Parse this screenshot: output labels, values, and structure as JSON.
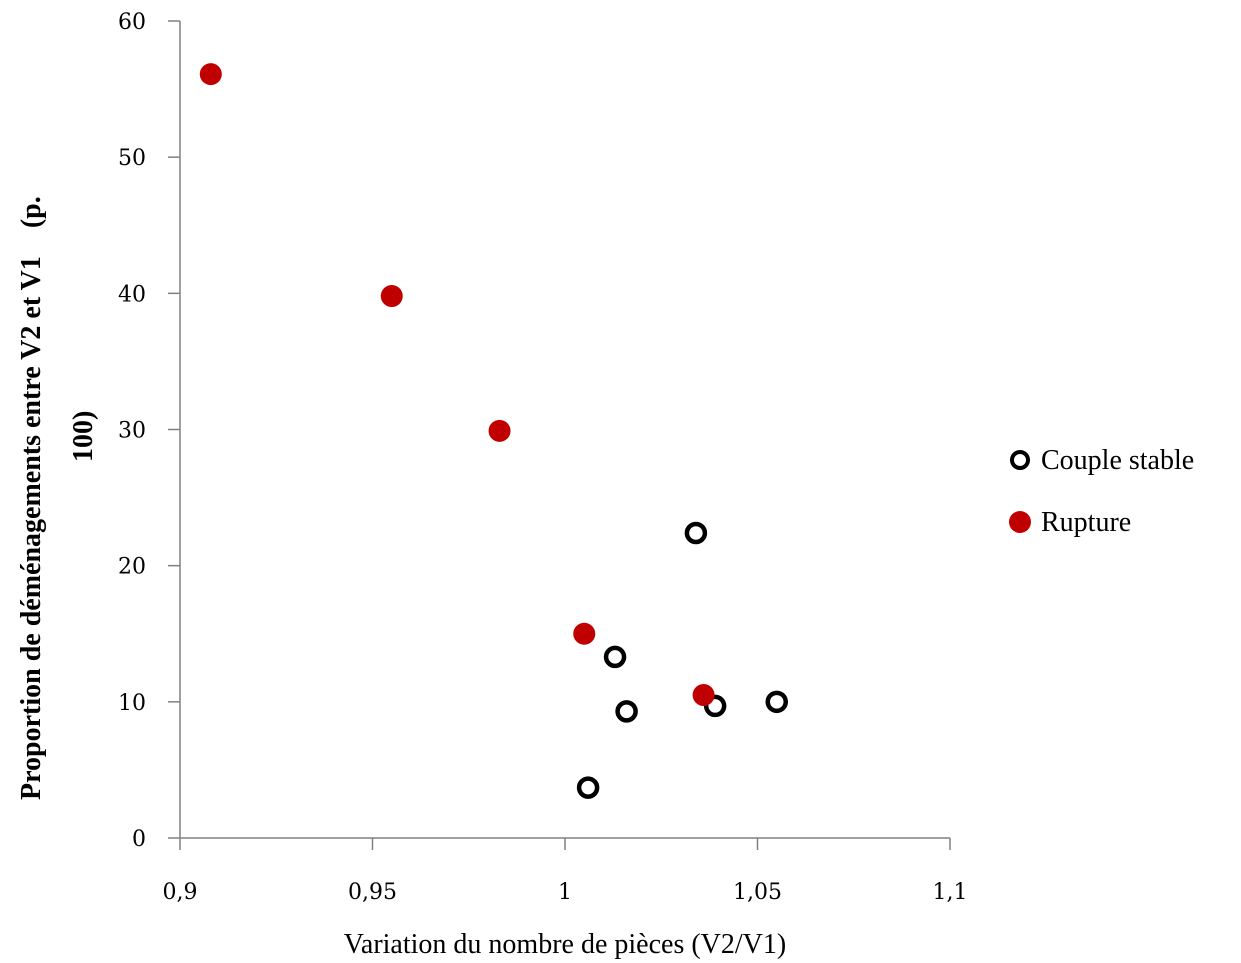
{
  "chart_data": {
    "type": "scatter",
    "title": "",
    "xlabel": "Variation du nombre de pièces (V2/V1)",
    "ylabel_line1": "Proportion de déménagements entre V2 et V1    (p.",
    "ylabel_line2": "100)",
    "xlim": [
      0.9,
      1.1
    ],
    "ylim": [
      0,
      60
    ],
    "x_ticks": [
      {
        "value": 0.9,
        "label": "0,9"
      },
      {
        "value": 0.95,
        "label": "0,95"
      },
      {
        "value": 1.0,
        "label": "1"
      },
      {
        "value": 1.05,
        "label": "1,05"
      },
      {
        "value": 1.1,
        "label": "1,1"
      }
    ],
    "y_ticks": [
      {
        "value": 0,
        "label": "0"
      },
      {
        "value": 10,
        "label": "10"
      },
      {
        "value": 20,
        "label": "20"
      },
      {
        "value": 30,
        "label": "30"
      },
      {
        "value": 40,
        "label": "40"
      },
      {
        "value": 50,
        "label": "50"
      },
      {
        "value": 60,
        "label": "60"
      }
    ],
    "grid": false,
    "legend_position": "right",
    "series": [
      {
        "name": "Couple stable",
        "marker": "hollow-circle",
        "color": "#000000",
        "points": [
          {
            "x": 1.006,
            "y": 3.7
          },
          {
            "x": 1.013,
            "y": 13.3
          },
          {
            "x": 1.016,
            "y": 9.3
          },
          {
            "x": 1.034,
            "y": 22.4
          },
          {
            "x": 1.039,
            "y": 9.7
          },
          {
            "x": 1.055,
            "y": 10.0
          }
        ]
      },
      {
        "name": "Rupture",
        "marker": "filled-circle",
        "color": "#C00000",
        "points": [
          {
            "x": 0.908,
            "y": 56.1
          },
          {
            "x": 0.955,
            "y": 39.8
          },
          {
            "x": 0.983,
            "y": 29.9
          },
          {
            "x": 1.005,
            "y": 15.0
          },
          {
            "x": 1.036,
            "y": 10.5
          }
        ]
      }
    ]
  }
}
